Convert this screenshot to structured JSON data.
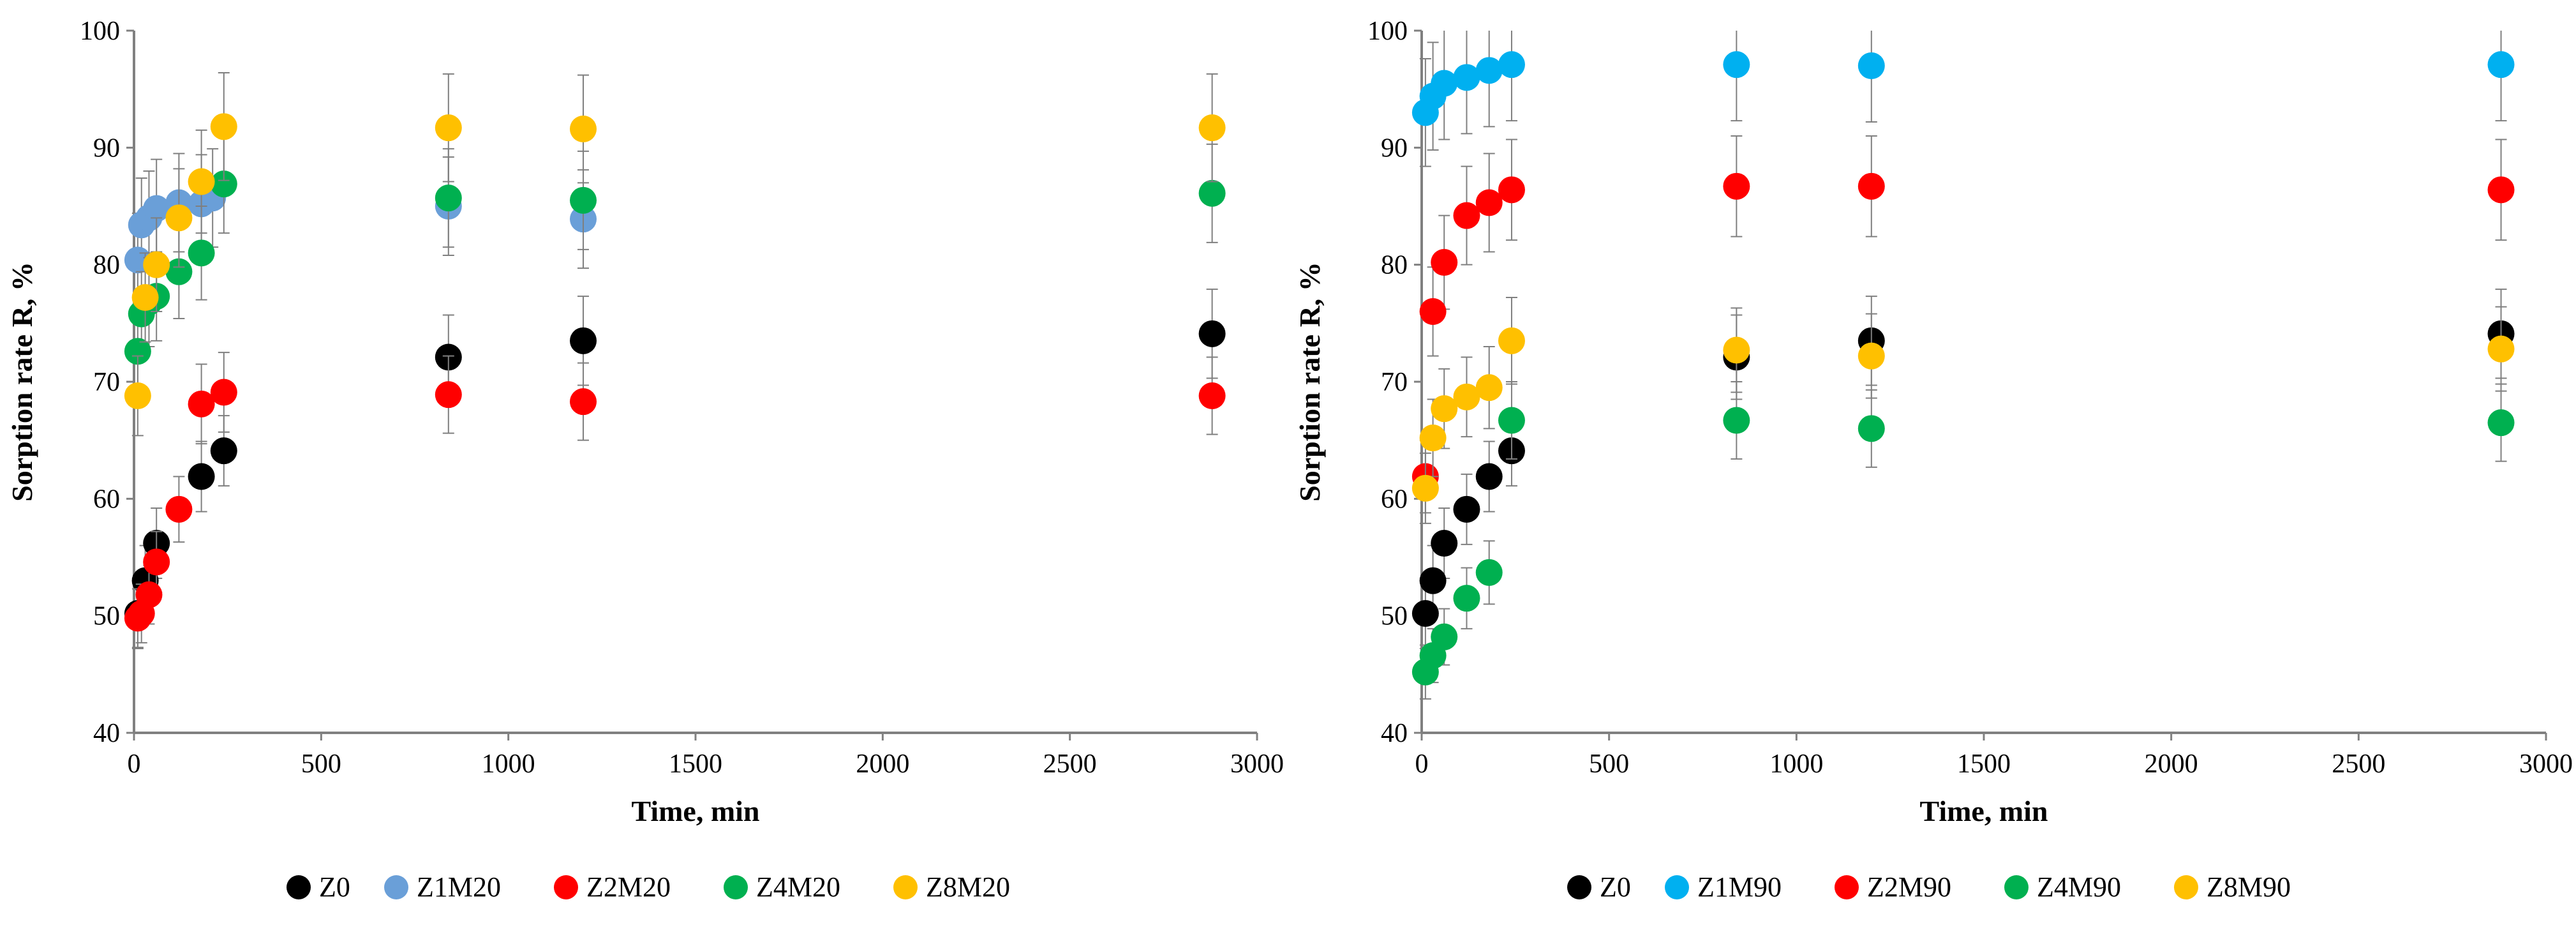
{
  "chart_data": [
    {
      "type": "scatter",
      "title": "",
      "xlabel": "Time, min",
      "ylabel": "Sorption rate R, %",
      "xlim": [
        0,
        3000
      ],
      "ylim": [
        40,
        100
      ],
      "xticks": [
        "0",
        "500",
        "1000",
        "1500",
        "2000",
        "2500",
        "3000"
      ],
      "yticks": [
        "40",
        "50",
        "60",
        "70",
        "80",
        "90",
        "100"
      ],
      "grid": false,
      "legend_position": "bottom",
      "error_bars": true,
      "series": [
        {
          "name": "Z0",
          "color": "#000000",
          "x": [
            10,
            30,
            60,
            180,
            240,
            840,
            1200,
            2880
          ],
          "y": [
            50.2,
            53.0,
            56.2,
            61.9,
            64.1,
            72.1,
            73.5,
            74.1
          ],
          "err": [
            3.0,
            3.0,
            3.0,
            3.0,
            3.0,
            3.6,
            3.8,
            3.8
          ]
        },
        {
          "name": "Z1M20",
          "color": "#6a9fd8",
          "x": [
            10,
            20,
            40,
            60,
            120,
            180,
            210,
            840,
            1200
          ],
          "y": [
            80.4,
            83.4,
            84.0,
            84.8,
            85.3,
            85.2,
            85.7,
            85.0,
            83.9
          ],
          "err": [
            4.0,
            4.0,
            4.0,
            4.2,
            4.2,
            4.2,
            4.2,
            4.2,
            4.2
          ]
        },
        {
          "name": "Z2M20",
          "color": "#ff0000",
          "x": [
            10,
            20,
            40,
            60,
            120,
            180,
            240,
            840,
            1200,
            2880
          ],
          "y": [
            49.8,
            50.2,
            51.8,
            54.6,
            59.1,
            68.1,
            69.1,
            68.9,
            68.3,
            68.8
          ],
          "err": [
            2.5,
            2.5,
            2.5,
            2.6,
            2.8,
            3.4,
            3.4,
            3.3,
            3.3,
            3.3
          ]
        },
        {
          "name": "Z4M20",
          "color": "#00b050",
          "x": [
            10,
            20,
            40,
            60,
            120,
            180,
            240,
            840,
            1200,
            2880
          ],
          "y": [
            72.6,
            75.8,
            76.8,
            77.3,
            79.4,
            81.0,
            86.9,
            85.7,
            85.5,
            86.1
          ],
          "err": [
            3.6,
            3.6,
            3.8,
            3.8,
            4.0,
            4.0,
            4.2,
            4.2,
            4.2,
            4.2
          ]
        },
        {
          "name": "Z8M20",
          "color": "#ffc000",
          "x": [
            10,
            30,
            60,
            120,
            180,
            240,
            840,
            1200,
            2880
          ],
          "y": [
            68.8,
            77.2,
            80.0,
            84.0,
            87.1,
            91.8,
            91.7,
            91.6,
            91.7
          ],
          "err": [
            3.4,
            3.8,
            4.0,
            4.2,
            4.4,
            4.6,
            4.6,
            4.6,
            4.6
          ]
        }
      ]
    },
    {
      "type": "scatter",
      "title": "",
      "xlabel": "Time, min",
      "ylabel": "Sorption rate R, %",
      "xlim": [
        0,
        3000
      ],
      "ylim": [
        40,
        100
      ],
      "xticks": [
        "0",
        "500",
        "1000",
        "1500",
        "2000",
        "2500",
        "3000"
      ],
      "yticks": [
        "40",
        "50",
        "60",
        "70",
        "80",
        "90",
        "100"
      ],
      "grid": false,
      "legend_position": "bottom",
      "error_bars": true,
      "series": [
        {
          "name": "Z0",
          "color": "#000000",
          "x": [
            10,
            30,
            60,
            120,
            180,
            240,
            840,
            1200,
            2880
          ],
          "y": [
            50.2,
            53.0,
            56.2,
            59.1,
            61.9,
            64.1,
            72.1,
            73.5,
            74.1
          ],
          "err": [
            3.0,
            3.0,
            3.0,
            3.0,
            3.0,
            3.0,
            3.6,
            3.8,
            3.8
          ]
        },
        {
          "name": "Z1M90",
          "color": "#00b0f0",
          "x": [
            10,
            30,
            60,
            120,
            180,
            240,
            840,
            1200,
            2880
          ],
          "y": [
            93.0,
            94.4,
            95.5,
            96.0,
            96.6,
            97.1,
            97.1,
            97.0,
            97.1
          ],
          "err": [
            4.6,
            4.6,
            4.8,
            4.8,
            4.8,
            4.8,
            4.8,
            4.8,
            4.8
          ]
        },
        {
          "name": "Z2M90",
          "color": "#ff0000",
          "x": [
            10,
            30,
            60,
            120,
            180,
            240,
            840,
            1200,
            2880
          ],
          "y": [
            61.9,
            76.0,
            80.2,
            84.2,
            85.3,
            86.4,
            86.7,
            86.7,
            86.4
          ],
          "err": [
            3.1,
            3.8,
            4.0,
            4.2,
            4.2,
            4.3,
            4.3,
            4.3,
            4.3
          ]
        },
        {
          "name": "Z4M90",
          "color": "#00b050",
          "x": [
            10,
            30,
            60,
            120,
            180,
            240,
            840,
            1200,
            2880
          ],
          "y": [
            45.2,
            46.6,
            48.2,
            51.5,
            53.7,
            66.7,
            66.7,
            66.0,
            66.5
          ],
          "err": [
            2.3,
            2.3,
            2.4,
            2.6,
            2.7,
            3.3,
            3.3,
            3.3,
            3.3
          ]
        },
        {
          "name": "Z8M90",
          "color": "#ffc000",
          "x": [
            10,
            30,
            60,
            120,
            180,
            240,
            840,
            1200,
            2880
          ],
          "y": [
            60.9,
            65.2,
            67.7,
            68.7,
            69.5,
            73.5,
            72.7,
            72.2,
            72.8
          ],
          "err": [
            3.0,
            3.3,
            3.4,
            3.4,
            3.5,
            3.7,
            3.6,
            3.6,
            3.6
          ]
        }
      ]
    }
  ]
}
